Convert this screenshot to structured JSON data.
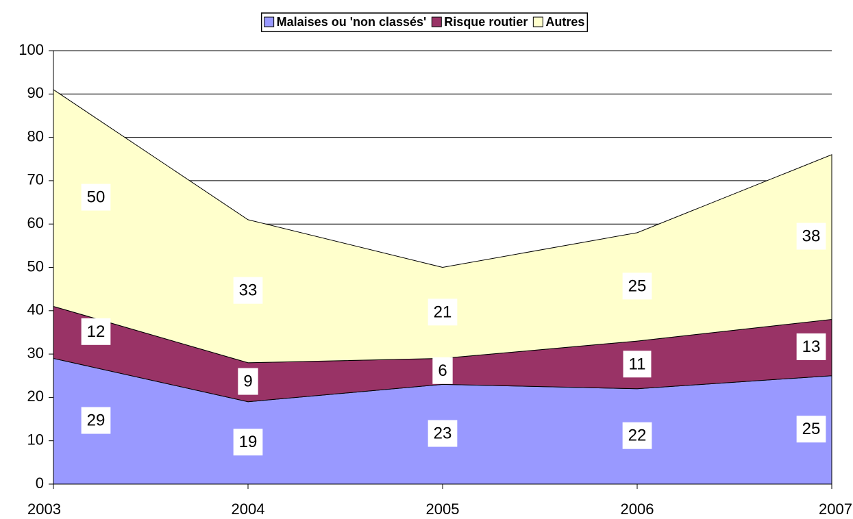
{
  "chart_data": {
    "type": "stacked_area",
    "categories": [
      "2003",
      "2004",
      "2005",
      "2006",
      "2007"
    ],
    "series": [
      {
        "name": "Malaises ou 'non classés'",
        "color": "#9999ff",
        "values": [
          29,
          19,
          23,
          22,
          25
        ]
      },
      {
        "name": "Risque routier",
        "color": "#993366",
        "values": [
          12,
          9,
          6,
          11,
          13
        ]
      },
      {
        "name": "Autres",
        "color": "#ffffcc",
        "values": [
          50,
          33,
          21,
          25,
          38
        ]
      }
    ],
    "ylim": [
      0,
      100
    ],
    "yticks": [
      0,
      10,
      20,
      30,
      40,
      50,
      60,
      70,
      80,
      90,
      100
    ],
    "grid": true,
    "legend": "top"
  }
}
